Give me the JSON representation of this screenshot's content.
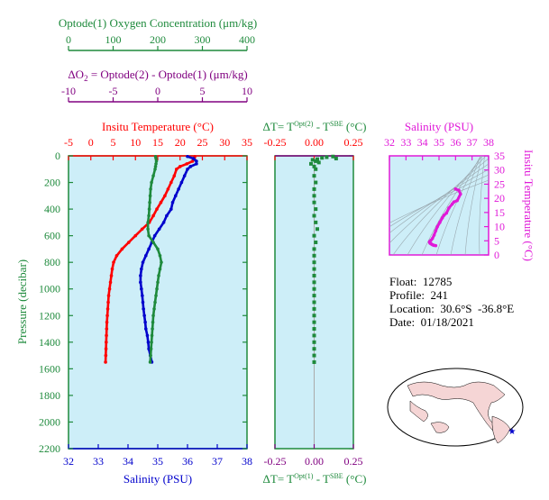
{
  "colors": {
    "green": "#1e8a3c",
    "purple": "#800080",
    "red": "#ff0000",
    "blue": "#0000cc",
    "magenta": "#e01ad8",
    "panel_bg": "#cdeef8",
    "map_bg": "#ffffff",
    "land": "#f5d5d5"
  },
  "oxygen_axis": {
    "title": "Optode(1) Oxygen Concentration (μm/kg)",
    "ticks": [
      "0",
      "100",
      "200",
      "300",
      "400"
    ]
  },
  "delta_o2_axis": {
    "title_prefix": "ΔO",
    "title_sub": "2",
    "title_rest": " = Optode(2) - Optode(1)    (μm/kg)",
    "ticks": [
      "-10",
      "-5",
      "0",
      "5",
      "10"
    ]
  },
  "temperature_axis": {
    "title": "Insitu Temperature (°C)",
    "ticks": [
      "-5",
      "0",
      "5",
      "10",
      "15",
      "20",
      "25",
      "30",
      "35"
    ]
  },
  "pressure_axis": {
    "title": "Pressure (decibar)",
    "ticks": [
      "0",
      "200",
      "400",
      "600",
      "800",
      "1000",
      "1200",
      "1400",
      "1600",
      "1800",
      "2000",
      "2200"
    ]
  },
  "salinity_axis": {
    "title": "Salinity (PSU)",
    "ticks": [
      "32",
      "33",
      "34",
      "35",
      "36",
      "37",
      "38"
    ]
  },
  "dt_top_axis": {
    "title_prefix": "ΔT= T",
    "title_sup1": "Opt(2)",
    "title_mid": " - T",
    "title_sup2": "SBE",
    "title_suffix": " (°C)",
    "ticks": [
      "-0.25",
      "0.00",
      "0.25"
    ]
  },
  "dt_bottom_axis": {
    "title_prefix": "ΔT= T",
    "title_sup1": "Opt(1)",
    "title_mid": " - T",
    "title_sup2": "SBE",
    "title_suffix": " (°C)",
    "ticks": [
      "-0.25",
      "0.00",
      "0.25"
    ]
  },
  "ts_salinity_axis": {
    "title": "Salinity (PSU)",
    "ticks": [
      "32",
      "33",
      "34",
      "35",
      "36",
      "37",
      "38"
    ]
  },
  "ts_temperature_axis": {
    "title": "Insitu Temperature (°C)",
    "ticks": [
      "0",
      "5",
      "10",
      "15",
      "20",
      "25",
      "30",
      "35"
    ]
  },
  "float_info": {
    "float": "Float:  12785",
    "profile": "Profile:  241",
    "location": "Location:  30.6°S  -36.8°E",
    "date": "Date:  01/18/2021"
  },
  "chart_data": [
    {
      "type": "line",
      "name": "profile",
      "y_axis": "Pressure (decibar)",
      "ylim": [
        2200,
        0
      ],
      "series": [
        {
          "name": "Insitu Temperature (°C)",
          "color": "#ff0000",
          "xlim": [
            -5,
            35
          ],
          "pressure": [
            5,
            20,
            40,
            60,
            80,
            100,
            150,
            200,
            250,
            300,
            350,
            400,
            450,
            500,
            550,
            600,
            650,
            700,
            750,
            800,
            850,
            900,
            950,
            1000,
            1050,
            1100,
            1150,
            1200,
            1250,
            1300,
            1350,
            1400,
            1450,
            1500,
            1550
          ],
          "values": [
            23.3,
            23.2,
            22.8,
            21.5,
            20.0,
            19.2,
            18.7,
            18.0,
            17.3,
            16.6,
            15.7,
            14.8,
            14.0,
            13.1,
            11.5,
            10.0,
            8.5,
            7.0,
            5.8,
            5.1,
            4.8,
            4.6,
            4.4,
            4.2,
            4.0,
            3.9,
            3.8,
            3.7,
            3.6,
            3.55,
            3.5,
            3.45,
            3.4,
            3.35,
            3.3
          ]
        },
        {
          "name": "Salinity (PSU)",
          "color": "#0000cc",
          "xlim": [
            32,
            38
          ],
          "pressure": [
            5,
            20,
            40,
            60,
            80,
            100,
            150,
            200,
            250,
            300,
            350,
            400,
            450,
            500,
            550,
            600,
            650,
            700,
            750,
            800,
            850,
            900,
            950,
            1000,
            1050,
            1100,
            1150,
            1200,
            1250,
            1300,
            1350,
            1400,
            1450,
            1500,
            1550
          ],
          "values": [
            36.0,
            36.2,
            36.3,
            36.3,
            36.1,
            36.0,
            35.9,
            35.8,
            35.7,
            35.6,
            35.5,
            35.45,
            35.3,
            35.2,
            35.05,
            34.9,
            34.8,
            34.7,
            34.6,
            34.5,
            34.45,
            34.42,
            34.42,
            34.45,
            34.48,
            34.5,
            34.52,
            34.55,
            34.58,
            34.6,
            34.65,
            34.68,
            34.7,
            34.75,
            34.8
          ]
        },
        {
          "name": "Optode(1) Oxygen Concentration (μm/kg)",
          "color": "#1e8a3c",
          "xlim": [
            0,
            400
          ],
          "pressure": [
            5,
            20,
            40,
            60,
            80,
            100,
            150,
            200,
            250,
            300,
            350,
            400,
            450,
            500,
            550,
            600,
            650,
            700,
            750,
            800,
            850,
            900,
            950,
            1000,
            1050,
            1100,
            1150,
            1200,
            1250,
            1300,
            1350,
            1400,
            1450,
            1500,
            1550
          ],
          "values": [
            195,
            196,
            197,
            196,
            195,
            194,
            190,
            186,
            184,
            183,
            182,
            181,
            180,
            178,
            178,
            180,
            190,
            200,
            205,
            208,
            205,
            202,
            200,
            198,
            196,
            194,
            192,
            190,
            189,
            188,
            187,
            186,
            185,
            184,
            183
          ]
        }
      ]
    },
    {
      "type": "scatter",
      "name": "delta-t",
      "xlim": [
        -0.25,
        0.25
      ],
      "ylim": [
        2200,
        0
      ],
      "series": [
        {
          "name": "ΔT",
          "color": "#1e8a3c",
          "pressure": [
            5,
            10,
            15,
            20,
            25,
            30,
            40,
            50,
            60,
            80,
            100,
            150,
            200,
            250,
            300,
            350,
            400,
            450,
            500,
            550,
            600,
            650,
            700,
            750,
            800,
            850,
            900,
            950,
            1000,
            1050,
            1100,
            1150,
            1200,
            1250,
            1300,
            1350,
            1400,
            1450,
            1500,
            1550
          ],
          "values": [
            0.12,
            0.08,
            0.05,
            0.14,
            0.02,
            -0.01,
            0.01,
            0.03,
            -0.02,
            0.0,
            0.01,
            0.0,
            0.01,
            0.0,
            0.0,
            0.0,
            0.01,
            0.0,
            0.01,
            0.02,
            0.0,
            0.01,
            0.0,
            0.0,
            0.0,
            0.0,
            0.0,
            0.0,
            0.0,
            0.0,
            0.0,
            0.0,
            0.0,
            0.0,
            0.0,
            0.0,
            0.0,
            0.0,
            0.0,
            0.0
          ]
        }
      ]
    },
    {
      "type": "scatter",
      "name": "ts-diagram",
      "x_label": "Salinity (PSU)",
      "y_label": "Insitu Temperature (°C)",
      "xlim": [
        32,
        38
      ],
      "ylim": [
        0,
        35
      ],
      "series": [
        {
          "name": "T-S",
          "color": "#e01ad8",
          "salinity": [
            36.0,
            36.2,
            36.3,
            36.1,
            35.9,
            35.8,
            35.6,
            35.45,
            35.3,
            35.2,
            35.05,
            34.9,
            34.8,
            34.7,
            34.6,
            34.5,
            34.45,
            34.42,
            34.45,
            34.5,
            34.55,
            34.6,
            34.65,
            34.7,
            34.8
          ],
          "temperature": [
            23.3,
            22.8,
            21.5,
            19.2,
            18.7,
            18.0,
            16.6,
            14.8,
            14.0,
            13.1,
            11.5,
            10.0,
            8.5,
            7.0,
            5.8,
            5.1,
            4.8,
            4.6,
            4.2,
            4.0,
            3.8,
            3.6,
            3.5,
            3.4,
            3.3
          ]
        }
      ]
    }
  ]
}
